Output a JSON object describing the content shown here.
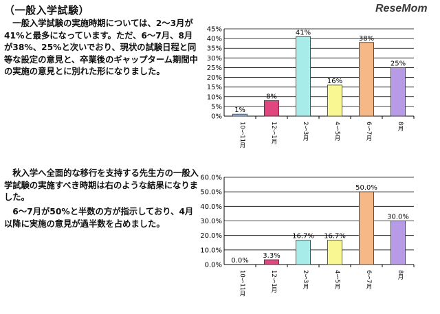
{
  "heading": "（一般入学試験）",
  "watermark": "ReseMom",
  "paragraphs": {
    "p1": "一般入学試験の実施時期については、2～3月が41%と最多になっています。ただ、6～7月、8月が38%、25%と次いでおり、現状の試験日程と同等な設定の意見と、卒業後のギャップターム期間中の実施の意見とに別れた形になりました。",
    "p2": "秋入学へ全面的な移行を支持する先生方の一般入学試験の実施すべき時期は右のような結果になりました。",
    "p3": "6～7月が50%と半数の方が指示しており、4月以降に実施の意見が過半数を占めました。"
  },
  "chart_data": [
    {
      "type": "bar",
      "categories": [
        "10～11月",
        "12～1月",
        "2～3月",
        "4～5月",
        "6～7月",
        "8月"
      ],
      "values": [
        1,
        8,
        41,
        16,
        38,
        25
      ],
      "data_labels": [
        "1%",
        "8%",
        "41%",
        "16%",
        "38%",
        "25%"
      ],
      "bar_colors": [
        "#9ec6f0",
        "#e0477e",
        "#a8ecea",
        "#f9f792",
        "#f6b886",
        "#b79be6"
      ],
      "ylim": [
        0,
        45
      ],
      "yticks": [
        "0%",
        "5%",
        "10%",
        "15%",
        "20%",
        "25%",
        "30%",
        "35%",
        "40%",
        "45%"
      ],
      "grid": true
    },
    {
      "type": "bar",
      "categories": [
        "10～11月",
        "12～1月",
        "2～3月",
        "4～5月",
        "6～7月",
        "8月"
      ],
      "values": [
        0,
        3.3,
        16.7,
        16.7,
        50,
        30
      ],
      "data_labels": [
        "0.0%",
        "3.3%",
        "16.7%",
        "16.7%",
        "50.0%",
        "30.0%"
      ],
      "bar_colors": [
        "#9ec6f0",
        "#e0477e",
        "#a8ecea",
        "#f9f792",
        "#f6b886",
        "#b79be6"
      ],
      "ylim": [
        0,
        60
      ],
      "yticks": [
        "0.0%",
        "10.0%",
        "20.0%",
        "30.0%",
        "40.0%",
        "50.0%",
        "60.0%"
      ],
      "grid": true
    }
  ]
}
